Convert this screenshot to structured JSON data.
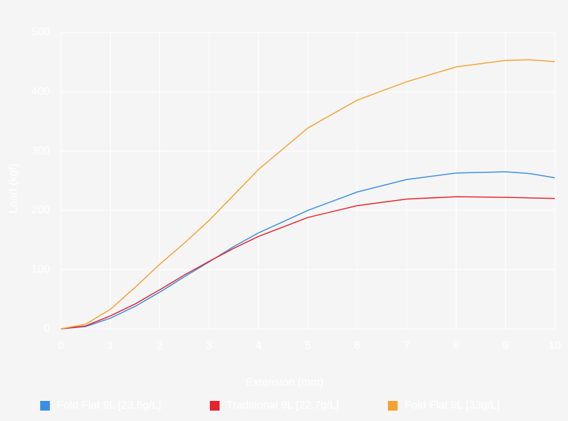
{
  "chart_data": {
    "type": "line",
    "x_label": "Extension (mm)",
    "y_label": "Load (kgf)",
    "x": [
      0,
      0.5,
      1,
      1.5,
      2,
      2.5,
      3,
      3.5,
      4,
      5,
      6,
      7,
      8,
      9,
      9.5,
      10
    ],
    "series": [
      {
        "name": "Fold Flat 9L [23.6g/L]",
        "color": "#3a8ee6",
        "values": [
          0,
          4,
          18,
          38,
          62,
          88,
          113,
          139,
          162,
          200,
          231,
          252,
          263,
          265,
          262,
          255
        ]
      },
      {
        "name": "Traditional 9L [22.7g/L]",
        "color": "#e8222c",
        "values": [
          0,
          5,
          22,
          42,
          66,
          91,
          114,
          136,
          156,
          188,
          208,
          219,
          223,
          222,
          221,
          220
        ]
      },
      {
        "name": "Fold Flat 9L [33g/L]",
        "color": "#f4a233",
        "values": [
          0,
          8,
          33,
          70,
          109,
          145,
          183,
          226,
          269,
          339,
          386,
          417,
          442,
          453,
          454,
          451
        ]
      }
    ],
    "xlim": [
      0,
      10
    ],
    "xticks": [
      0,
      1,
      2,
      3,
      4,
      5,
      6,
      7,
      8,
      9,
      10
    ],
    "ylim": [
      0,
      500
    ],
    "yticks": [
      0,
      100,
      200,
      300,
      400,
      500
    ],
    "grid": true,
    "legend": "bottom"
  }
}
